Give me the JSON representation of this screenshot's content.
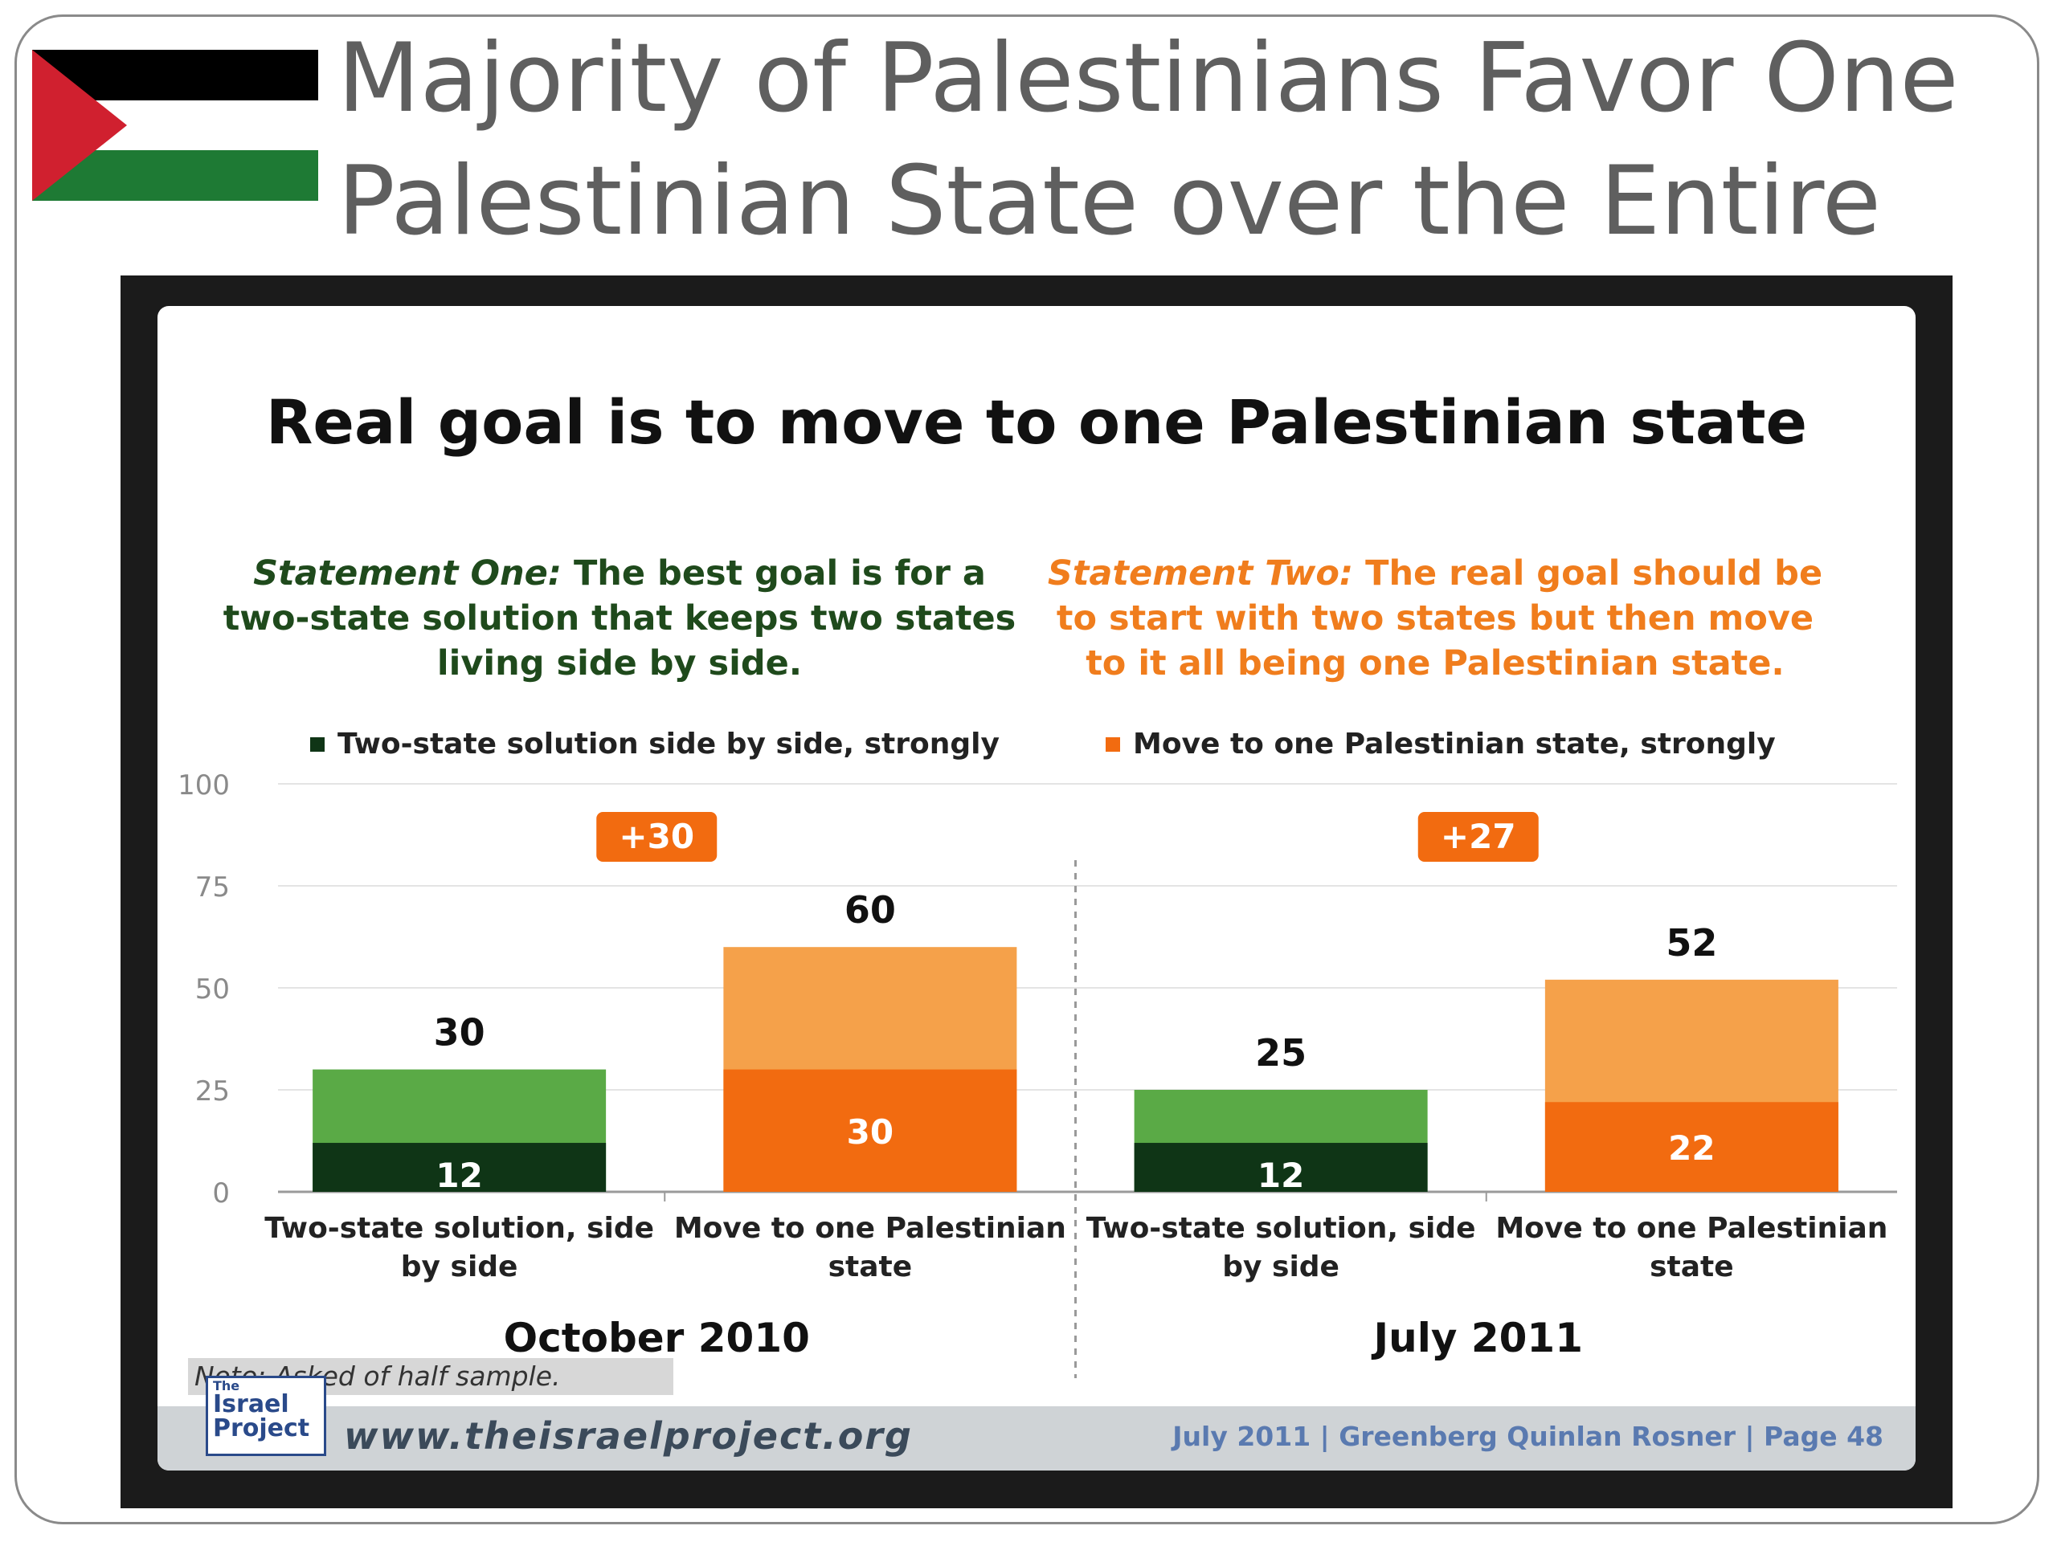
{
  "slide": {
    "title_line1": "Majority of Palestinians Favor One",
    "title_line2": "Palestinian State over the Entire Land:",
    "flag_colors": {
      "black": "#000000",
      "white": "#ffffff",
      "green": "#1e7a34",
      "red": "#d0202f"
    }
  },
  "statements": {
    "one_label": "Statement One:",
    "one_text": "The best goal is for a two-state solution that keeps two states living side by side.",
    "two_label": "Statement Two:",
    "two_text": "The real goal should be to start with two states but then move to it all being one Palestinian state."
  },
  "legend": {
    "two_state": "Two-state solution side by side, strongly",
    "one_state": "Move to one Palestinian state, strongly"
  },
  "chart_data": {
    "type": "bar",
    "title": "Real goal is to move to one Palestinian state",
    "ylim": [
      0,
      100
    ],
    "yticks": [
      0,
      25,
      50,
      75,
      100
    ],
    "grid": true,
    "legend_position": "top",
    "colors": {
      "two_state_total": "#5aaa46",
      "two_state_strong": "#0f3516",
      "one_state_total": "#f5a14a",
      "one_state_strong": "#f26b10",
      "badge": "#f26b10"
    },
    "groups": [
      {
        "name": "October 2010",
        "difference_label": "+30",
        "bars": [
          {
            "category": "Two-state solution, side by side",
            "category_lines": [
              "Two-state solution, side",
              "by side"
            ],
            "total": 30,
            "strongly": 12,
            "kind": "two_state"
          },
          {
            "category": "Move to one Palestinian state",
            "category_lines": [
              "Move to one Palestinian",
              "state"
            ],
            "total": 60,
            "strongly": 30,
            "kind": "one_state"
          }
        ]
      },
      {
        "name": "July 2011",
        "difference_label": "+27",
        "bars": [
          {
            "category": "Two-state solution, side by side",
            "category_lines": [
              "Two-state solution, side",
              "by side"
            ],
            "total": 25,
            "strongly": 12,
            "kind": "two_state"
          },
          {
            "category": "Move to one Palestinian state",
            "category_lines": [
              "Move to one Palestinian",
              "state"
            ],
            "total": 52,
            "strongly": 22,
            "kind": "one_state"
          }
        ]
      }
    ]
  },
  "footer": {
    "note": "Note: Asked of half sample.",
    "logo_line1": "The",
    "logo_line2": "Israel",
    "logo_line3": "Project",
    "url": "www.theisraelproject.org",
    "credits": "July 2011 |  Greenberg Quinlan Rosner  |  Page 48"
  }
}
